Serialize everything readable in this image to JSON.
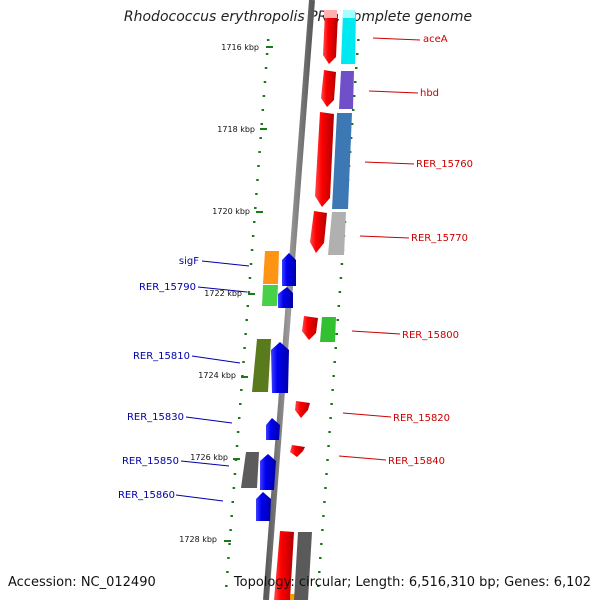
{
  "title": "Rhodococcus erythropolis PR4, complete genome",
  "footer": {
    "accession": "Accession: NC_012490",
    "summary": "Topology: circular; Length: 6,516,310 bp; Genes: 6,102"
  },
  "scale": {
    "unit": "kbp",
    "ticks": [
      "1716 kbp",
      "1718 kbp",
      "1720 kbp",
      "1722 kbp",
      "1724 kbp",
      "1726 kbp",
      "1728 kbp"
    ]
  },
  "colors": {
    "backbone": "#7a7a7a",
    "tick": "#1a7a1a",
    "forward_gene": "#ff0000",
    "reverse_gene": "#0000ee",
    "forward_label": "#cc0000",
    "reverse_label": "#0000aa"
  },
  "forward_genes": [
    "aceA",
    "hbd",
    "RER_15760",
    "RER_15770",
    "RER_15800",
    "RER_15820",
    "RER_15840"
  ],
  "reverse_genes": [
    "sigF",
    "RER_15790",
    "RER_15810",
    "RER_15830",
    "RER_15850",
    "RER_15860"
  ]
}
